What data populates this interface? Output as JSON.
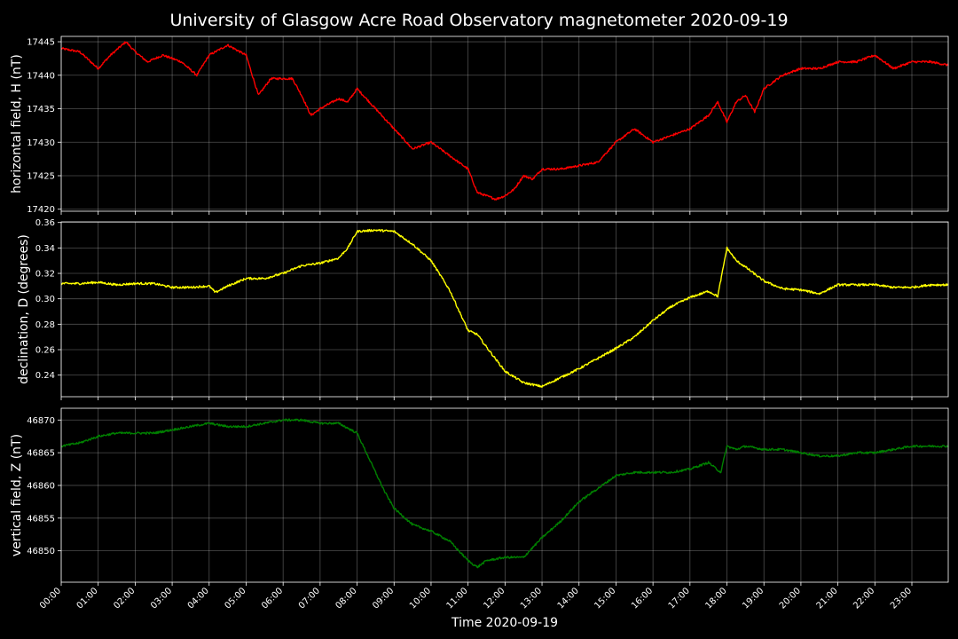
{
  "title": "University of Glasgow Acre Road Observatory magnetometer 2020-09-19",
  "chart_data": {
    "type": "line",
    "title": "University of Glasgow Acre Road Observatory magnetometer 2020-09-19",
    "xlabel": "Time 2020-09-19",
    "x_tick_labels": [
      "00:00",
      "01:00",
      "02:00",
      "03:00",
      "04:00",
      "05:00",
      "06:00",
      "07:00",
      "08:00",
      "09:00",
      "10:00",
      "11:00",
      "12:00",
      "13:00",
      "14:00",
      "15:00",
      "16:00",
      "17:00",
      "18:00",
      "19:00",
      "20:00",
      "21:00",
      "22:00",
      "23:00"
    ],
    "xlim": [
      "00:00",
      "23:59"
    ],
    "grid": true,
    "background": "#000000",
    "panels": [
      {
        "ylabel": "horizontal field, H (nT)",
        "ylim": [
          17419.7,
          17445.8
        ],
        "yticks": [
          "17420",
          "17425",
          "17430",
          "17435",
          "17440",
          "17445"
        ],
        "series": [
          {
            "color": "#ff0000",
            "x": [
              "00:00",
              "00:30",
              "01:00",
              "01:20",
              "01:45",
              "02:00",
              "02:20",
              "02:45",
              "03:15",
              "03:40",
              "04:00",
              "04:30",
              "05:00",
              "05:20",
              "05:40",
              "06:15",
              "06:30",
              "06:45",
              "07:00",
              "07:30",
              "07:45",
              "08:00",
              "08:30",
              "09:00",
              "09:30",
              "10:00",
              "10:30",
              "11:00",
              "11:15",
              "11:45",
              "12:00",
              "12:15",
              "12:30",
              "12:45",
              "13:00",
              "13:30",
              "14:00",
              "14:30",
              "15:00",
              "15:30",
              "16:00",
              "16:30",
              "17:00",
              "17:30",
              "17:45",
              "18:00",
              "18:15",
              "18:30",
              "18:45",
              "19:00",
              "19:30",
              "20:00",
              "20:30",
              "21:00",
              "21:30",
              "22:00",
              "22:30",
              "23:00",
              "23:30",
              "23:59"
            ],
            "values": [
              17444,
              17443.5,
              17441,
              17443,
              17445,
              17443.5,
              17442,
              17443,
              17442,
              17440,
              17443,
              17444.5,
              17443,
              17437,
              17439.5,
              17439.5,
              17437,
              17434,
              17435,
              17436.5,
              17436,
              17438,
              17435,
              17432,
              17429,
              17430,
              17428,
              17426,
              17422.5,
              17421.5,
              17422,
              17423,
              17425,
              17424.5,
              17426,
              17426,
              17426.5,
              17427,
              17430,
              17432,
              17430,
              17431,
              17432,
              17434,
              17436,
              17433,
              17436,
              17437,
              17434.5,
              17438,
              17440,
              17441,
              17441,
              17442,
              17442,
              17443,
              17441,
              17442,
              17442,
              17441.5
            ]
          }
        ]
      },
      {
        "ylabel": "declination, D (degrees)",
        "ylim": [
          0.223,
          0.3605
        ],
        "yticks": [
          "0.24",
          "0.26",
          "0.28",
          "0.30",
          "0.32",
          "0.34",
          "0.36"
        ],
        "series": [
          {
            "color": "#ffff00",
            "x": [
              "00:00",
              "00:30",
              "01:00",
              "01:30",
              "02:00",
              "02:30",
              "03:00",
              "03:30",
              "04:00",
              "04:10",
              "04:30",
              "05:00",
              "05:30",
              "06:00",
              "06:30",
              "07:00",
              "07:30",
              "07:45",
              "08:00",
              "08:30",
              "09:00",
              "09:30",
              "10:00",
              "10:30",
              "11:00",
              "11:15",
              "11:30",
              "12:00",
              "12:30",
              "13:00",
              "13:30",
              "14:00",
              "14:30",
              "15:00",
              "15:30",
              "16:00",
              "16:30",
              "17:00",
              "17:30",
              "17:45",
              "18:00",
              "18:15",
              "18:30",
              "19:00",
              "19:30",
              "20:00",
              "20:30",
              "21:00",
              "21:30",
              "22:00",
              "22:30",
              "23:00",
              "23:30",
              "23:59"
            ],
            "values": [
              0.312,
              0.312,
              0.313,
              0.311,
              0.312,
              0.312,
              0.309,
              0.309,
              0.31,
              0.305,
              0.31,
              0.316,
              0.316,
              0.32,
              0.326,
              0.328,
              0.332,
              0.34,
              0.353,
              0.354,
              0.353,
              0.343,
              0.33,
              0.307,
              0.275,
              0.272,
              0.262,
              0.243,
              0.234,
              0.231,
              0.238,
              0.245,
              0.253,
              0.261,
              0.27,
              0.283,
              0.294,
              0.301,
              0.306,
              0.302,
              0.34,
              0.33,
              0.325,
              0.314,
              0.308,
              0.307,
              0.304,
              0.311,
              0.311,
              0.311,
              0.309,
              0.309,
              0.311,
              0.311
            ]
          }
        ]
      },
      {
        "ylabel": "vertical field, Z (nT)",
        "ylim": [
          46845.2,
          46871.8
        ],
        "yticks": [
          "46850",
          "46855",
          "46860",
          "46865",
          "46870"
        ],
        "series": [
          {
            "color": "#008000",
            "x": [
              "00:00",
              "00:30",
              "01:00",
              "01:30",
              "02:00",
              "02:30",
              "03:00",
              "03:30",
              "04:00",
              "04:30",
              "05:00",
              "05:30",
              "06:00",
              "06:30",
              "07:00",
              "07:30",
              "08:00",
              "08:15",
              "08:30",
              "08:45",
              "09:00",
              "09:30",
              "10:00",
              "10:30",
              "11:00",
              "11:15",
              "11:30",
              "12:00",
              "12:30",
              "13:00",
              "13:30",
              "14:00",
              "14:30",
              "15:00",
              "15:30",
              "16:00",
              "16:30",
              "17:00",
              "17:30",
              "17:50",
              "18:00",
              "18:15",
              "18:30",
              "19:00",
              "19:30",
              "20:00",
              "20:30",
              "21:00",
              "21:30",
              "22:00",
              "22:30",
              "23:00",
              "23:30",
              "23:59"
            ],
            "values": [
              46866,
              46866.5,
              46867.5,
              46868,
              46868,
              46868,
              46868.5,
              46869,
              46869.5,
              46869,
              46869,
              46869.5,
              46870,
              46870,
              46869.5,
              46869.5,
              46868,
              46865,
              46862,
              46859,
              46856.5,
              46854,
              46853,
              46851.5,
              46848.5,
              46847.5,
              46848.5,
              46849,
              46849,
              46852,
              46854.5,
              46857.5,
              46859.5,
              46861.5,
              46862,
              46862,
              46862,
              46862.5,
              46863.5,
              46862,
              46866,
              46865.5,
              46866,
              46865.5,
              46865.5,
              46865,
              46864.5,
              46864.5,
              46865,
              46865,
              46865.5,
              46866,
              46866,
              46866
            ]
          }
        ]
      }
    ]
  }
}
